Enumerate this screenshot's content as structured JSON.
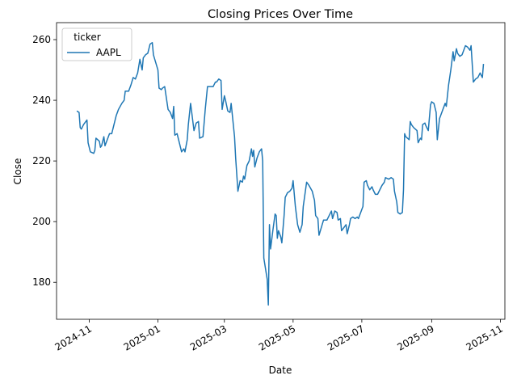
{
  "chart_data": {
    "type": "line",
    "title": "Closing Prices Over Time",
    "x_label": "Date",
    "y_label": "Close",
    "x": [
      20017,
      20019,
      20020,
      20021,
      20023,
      20026,
      20027,
      20029,
      20032,
      20033,
      20034,
      20037,
      20038,
      20039,
      20041,
      20042,
      20044,
      20046,
      20048,
      20050,
      20052,
      20054,
      20057,
      20059,
      20060,
      20063,
      20065,
      20067,
      20069,
      20071,
      20073,
      20075,
      20076,
      20078,
      20080,
      20082,
      20084,
      20085,
      20087,
      20089,
      20090,
      20092,
      20093,
      20095,
      20096,
      20098,
      20100,
      20102,
      20103,
      20104,
      20106,
      20108,
      20110,
      20112,
      20113,
      20115,
      20116,
      20118,
      20119,
      20121,
      20123,
      20125,
      20126,
      20129,
      20131,
      20133,
      20136,
      20138,
      20140,
      20141,
      20143,
      20145,
      20146,
      20148,
      20149,
      20151,
      20153,
      20154,
      20157,
      20158,
      20160,
      20162,
      20164,
      20165,
      20166,
      20168,
      20170,
      20172,
      20173,
      20174,
      20175,
      20177,
      20179,
      20181,
      20182,
      20183,
      20186,
      20187,
      20188,
      20189,
      20191,
      20193,
      20194,
      20195,
      20196,
      20198,
      20199,
      20201,
      20202,
      20204,
      20206,
      20208,
      20209,
      20211,
      20213,
      20215,
      20217,
      20218,
      20221,
      20223,
      20226,
      20228,
      20229,
      20231,
      20232,
      20234,
      20236,
      20239,
      20241,
      20243,
      20244,
      20246,
      20248,
      20249,
      20251,
      20252,
      20254,
      20256,
      20257,
      20259,
      20260,
      20262,
      20264,
      20266,
      20267,
      20269,
      20271,
      20272,
      20274,
      20275,
      20277,
      20279,
      20280,
      20282,
      20284,
      20286,
      20288,
      20290,
      20291,
      20294,
      20296,
      20298,
      20299,
      20301,
      20302,
      20304,
      20306,
      20307,
      20308,
      20309,
      20312,
      20313,
      20314,
      20316,
      20319,
      20320,
      20322,
      20323,
      20324,
      20326,
      20327,
      20329,
      20331,
      20332,
      20334,
      20336,
      20337,
      20339,
      20340,
      20342,
      20344,
      20345,
      20347,
      20349,
      20351,
      20352,
      20354,
      20355,
      20357,
      20359,
      20362,
      20364,
      20366,
      20367,
      20369,
      20371,
      20373,
      20375,
      20377,
      20378
    ],
    "series": [
      {
        "name": "AAPL",
        "color": "#1f77b4",
        "values": [
          236.5,
          236,
          231,
          230.5,
          232,
          233.5,
          226,
          223,
          222.5,
          223.5,
          227.5,
          226.5,
          224.5,
          225,
          228,
          225,
          227,
          229,
          229,
          232,
          235,
          237,
          239,
          240,
          243,
          243,
          245,
          247.5,
          247,
          249,
          253.5,
          250,
          254,
          255,
          255.5,
          258.5,
          259,
          255,
          252.5,
          250,
          244,
          243.5,
          244,
          244.5,
          242,
          237,
          236,
          234,
          238,
          228.5,
          229,
          226,
          223,
          224,
          223,
          227,
          232,
          239,
          236,
          230,
          232.5,
          233,
          227.5,
          228,
          237,
          244.5,
          244.5,
          244.5,
          246,
          246,
          247,
          246.5,
          237,
          241.5,
          240,
          236.5,
          236,
          239,
          228,
          221,
          210,
          213.5,
          213,
          215,
          214,
          218.5,
          220,
          224,
          221.5,
          223.5,
          218,
          221,
          223,
          224,
          220,
          188,
          181,
          172.5,
          199,
          191,
          197,
          202.5,
          202,
          194.5,
          197,
          195,
          193,
          202,
          208,
          209.5,
          210,
          211,
          213.5,
          205,
          199,
          196.5,
          199,
          205,
          213,
          212,
          210,
          207,
          202,
          201,
          195.5,
          198,
          200.5,
          200.5,
          202,
          203.5,
          201,
          203.5,
          203,
          200.5,
          201,
          197,
          198,
          199,
          196,
          199,
          201,
          201.5,
          201,
          201.5,
          201,
          203,
          205,
          213,
          213.5,
          212,
          210.5,
          211.5,
          210.5,
          209,
          209,
          210.5,
          212,
          213,
          214.5,
          214,
          214.5,
          214,
          210,
          206.5,
          203,
          202.5,
          203,
          210.5,
          229,
          228,
          227,
          233,
          232,
          231,
          230,
          226,
          227.5,
          227,
          232,
          232.5,
          231.5,
          230,
          238.5,
          239.5,
          239,
          236,
          227,
          234,
          235,
          237,
          239,
          238,
          245,
          250,
          256,
          253,
          257,
          255.5,
          254.5,
          255,
          258,
          257.5,
          256.5,
          258,
          246,
          247,
          247.5,
          249,
          247.5,
          252
        ]
      }
    ],
    "xlim": [
      19999,
      20397
    ],
    "xticks": [
      {
        "value": 20028,
        "label": "2024-11"
      },
      {
        "value": 20089,
        "label": "2025-01"
      },
      {
        "value": 20148,
        "label": "2025-03"
      },
      {
        "value": 20209,
        "label": "2025-05"
      },
      {
        "value": 20270,
        "label": "2025-07"
      },
      {
        "value": 20332,
        "label": "2025-09"
      },
      {
        "value": 20393,
        "label": "2025-11"
      }
    ],
    "ylim": [
      167.8,
      265.6
    ],
    "yticks": [
      180,
      200,
      220,
      240,
      260
    ],
    "grid": false,
    "legend": "upper left",
    "legend_title": "ticker"
  }
}
